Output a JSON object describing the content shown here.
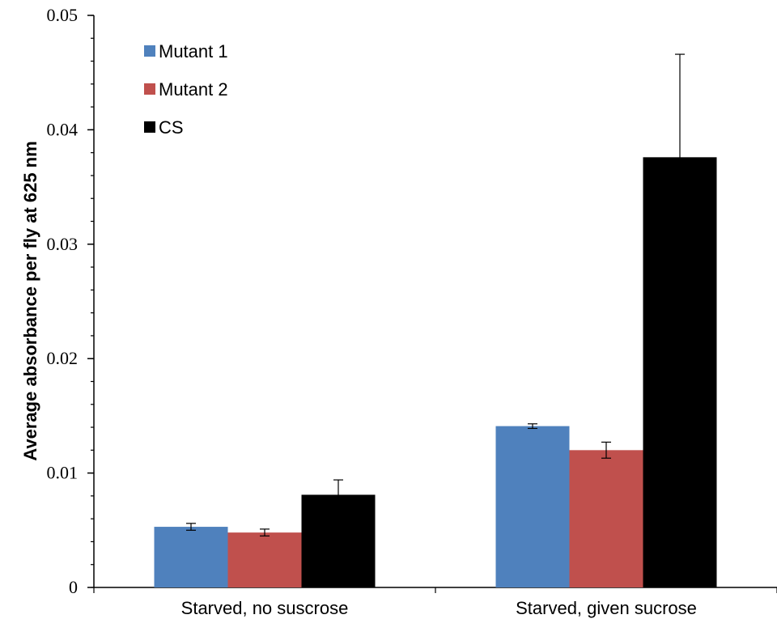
{
  "chart_data": {
    "type": "bar",
    "title": "",
    "xlabel": "",
    "ylabel": "Average absorbance per fly at 625 nm",
    "ylim": [
      0,
      0.05
    ],
    "yticks": [
      0,
      0.01,
      0.02,
      0.03,
      0.04,
      0.05
    ],
    "ytick_labels": [
      "0",
      "0.01",
      "0.02",
      "0.03",
      "0.04",
      "0.05"
    ],
    "categories": [
      "Starved, no suscrose",
      "Starved, given sucrose"
    ],
    "series": [
      {
        "name": "Mutant 1",
        "color": "#4f81bd",
        "values": [
          0.0053,
          0.0141
        ],
        "errors": [
          0.0003,
          0.0002
        ]
      },
      {
        "name": "Mutant 2",
        "color": "#c0504d",
        "values": [
          0.0048,
          0.012
        ],
        "errors": [
          0.0003,
          0.0007
        ]
      },
      {
        "name": "CS",
        "color": "#000000",
        "values": [
          0.0081,
          0.0376
        ],
        "errors": [
          0.0013,
          0.009
        ]
      }
    ],
    "error_bars": "positive-and-negative",
    "grid": false,
    "legend": "top-left"
  }
}
